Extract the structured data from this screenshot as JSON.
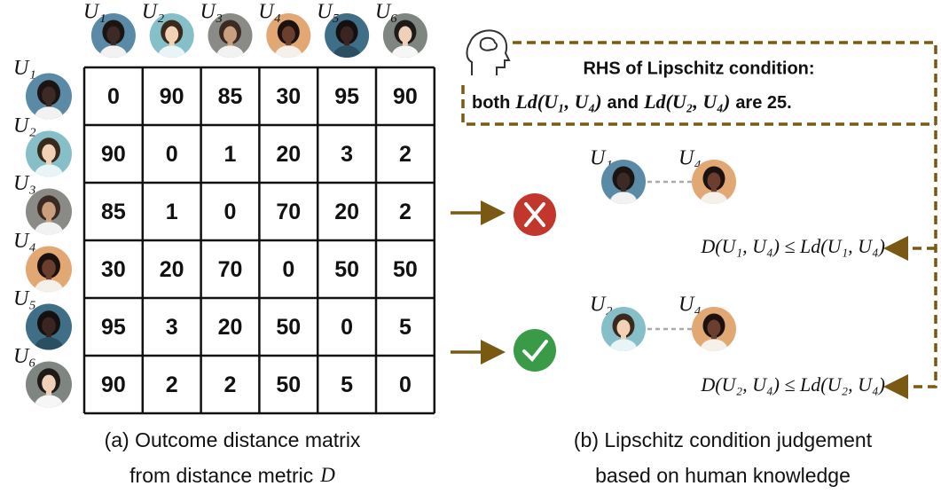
{
  "users": [
    "U₁",
    "U₂",
    "U₃",
    "U₄",
    "U₅",
    "U₆"
  ],
  "matrix": {
    "rows": [
      [
        0,
        90,
        85,
        30,
        95,
        90
      ],
      [
        90,
        0,
        1,
        20,
        3,
        2
      ],
      [
        85,
        1,
        0,
        70,
        20,
        2
      ],
      [
        30,
        20,
        70,
        0,
        50,
        50
      ],
      [
        95,
        3,
        20,
        50,
        0,
        5
      ],
      [
        90,
        2,
        2,
        50,
        5,
        0
      ]
    ],
    "highlighted": [
      [
        0,
        3
      ],
      [
        1,
        3
      ],
      [
        3,
        0
      ],
      [
        3,
        1
      ]
    ],
    "highlight_color": "#b01c24"
  },
  "panel_b": {
    "heading": "RHS of Lipschitz condition:",
    "statement": [
      "both",
      "Ld(U₁, U₄)",
      "and",
      "Ld(U₂, U₄)",
      "are 25."
    ],
    "formulas": [
      "D(U₁, U₄) ≤ Ld(U₁, U₄)",
      "D(U₂, U₄) ≤ Ld(U₂, U₄)"
    ]
  },
  "captions": {
    "a": [
      "(a) Outcome distance matrix",
      "from distance metric",
      "D"
    ],
    "b": [
      "(b) Lipschitz condition judgement",
      "based on human knowledge"
    ]
  }
}
